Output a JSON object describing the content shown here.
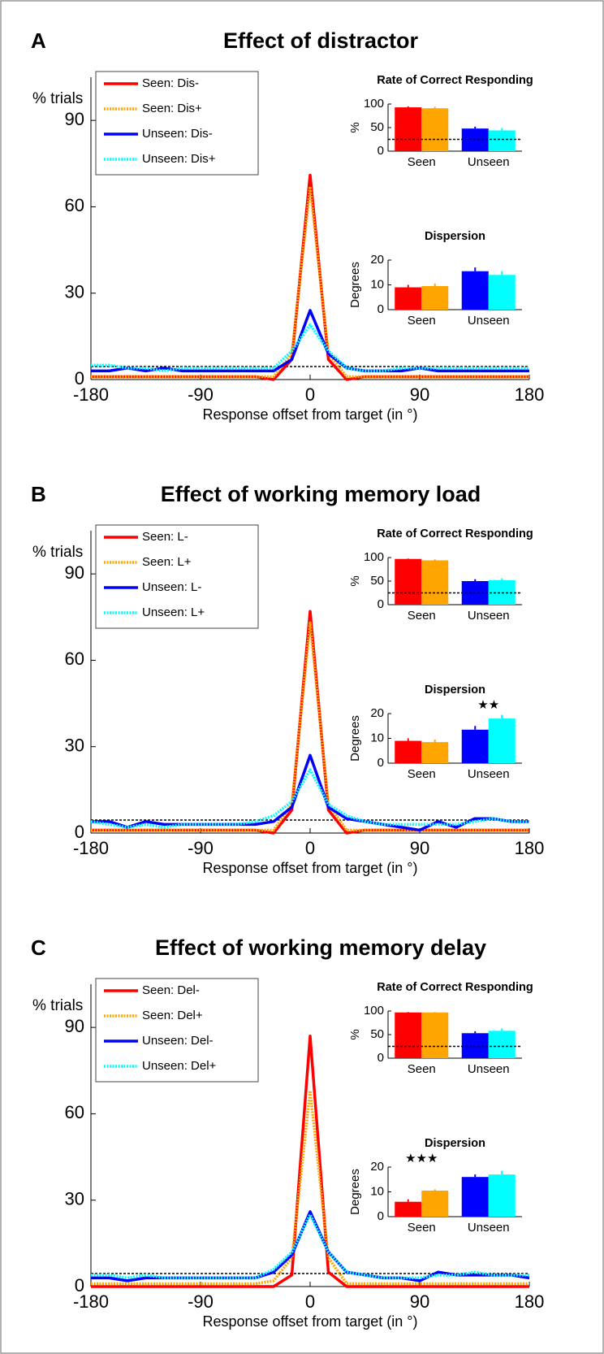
{
  "chart_data": [
    {
      "type": "line",
      "panel_label": "A",
      "title": "Effect of distractor",
      "y_label": "% trials",
      "x_label": "Response offset from target (in °)",
      "xlim": [
        -180,
        180
      ],
      "xticks": [
        -180,
        -90,
        0,
        90,
        180
      ],
      "ylim": [
        0,
        105
      ],
      "yticks": [
        0,
        30,
        60,
        90
      ],
      "x": [
        -180,
        -165,
        -150,
        -135,
        -120,
        -105,
        -90,
        -75,
        -60,
        -45,
        -30,
        -15,
        0,
        15,
        30,
        45,
        60,
        75,
        90,
        105,
        120,
        135,
        150,
        165,
        180
      ],
      "reference_line": 4.5,
      "legend": "upper left",
      "series": [
        {
          "name": "Seen: Dis-",
          "color": "#ff0000",
          "dash": "solid",
          "values": [
            1,
            1,
            1,
            1,
            1,
            1,
            1,
            1,
            1,
            1,
            0,
            7,
            71,
            7,
            0,
            1,
            1,
            1,
            1,
            1,
            1,
            1,
            1,
            1,
            1
          ]
        },
        {
          "name": "Seen: Dis+",
          "color": "#ffa500",
          "dash": "dotted",
          "values": [
            1,
            1,
            1,
            1,
            1,
            1,
            1,
            1,
            1,
            1,
            1,
            9,
            67,
            9,
            1,
            1,
            1,
            1,
            1,
            1,
            1,
            1,
            1,
            1,
            1
          ]
        },
        {
          "name": "Unseen: Dis-",
          "color": "#0000ff",
          "dash": "solid",
          "values": [
            3,
            3,
            4,
            3,
            4,
            3,
            3,
            3,
            3,
            3,
            3,
            7,
            24,
            9,
            4,
            3,
            3,
            3,
            4,
            3,
            3,
            3,
            3,
            3,
            3
          ]
        },
        {
          "name": "Unseen: Dis+",
          "color": "#00ffff",
          "dash": "dotted",
          "values": [
            5,
            5,
            4,
            4,
            3,
            4,
            4,
            4,
            4,
            4,
            4,
            10,
            19,
            10,
            4,
            3,
            3,
            4,
            4,
            4,
            4,
            4,
            4,
            4,
            4
          ]
        }
      ],
      "insets": [
        {
          "type": "bar",
          "title": "Rate of Correct Responding",
          "y_label": "%",
          "ylim": [
            0,
            100
          ],
          "yticks": [
            0,
            50,
            100
          ],
          "categories": [
            "Seen",
            "Unseen"
          ],
          "reference_line": 25,
          "series": [
            {
              "colors": [
                "#ff0000",
                "#0000ff"
              ],
              "values": [
                93,
                48
              ],
              "errors": [
                2,
                4
              ]
            },
            {
              "colors": [
                "#ffa500",
                "#00ffff"
              ],
              "values": [
                91,
                44
              ],
              "errors": [
                3,
                5
              ]
            }
          ]
        },
        {
          "type": "bar",
          "title": "Dispersion",
          "y_label": "Degrees",
          "ylim": [
            0,
            20
          ],
          "yticks": [
            0,
            10,
            20
          ],
          "categories": [
            "Seen",
            "Unseen"
          ],
          "series": [
            {
              "colors": [
                "#ff0000",
                "#0000ff"
              ],
              "values": [
                9,
                15.5
              ],
              "errors": [
                1,
                1.5
              ]
            },
            {
              "colors": [
                "#ffa500",
                "#00ffff"
              ],
              "values": [
                9.5,
                14
              ],
              "errors": [
                1,
                1.5
              ]
            }
          ]
        }
      ]
    },
    {
      "type": "line",
      "panel_label": "B",
      "title": "Effect of working memory load",
      "y_label": "% trials",
      "x_label": "Response offset from target (in °)",
      "xlim": [
        -180,
        180
      ],
      "xticks": [
        -180,
        -90,
        0,
        90,
        180
      ],
      "ylim": [
        0,
        105
      ],
      "yticks": [
        0,
        30,
        60,
        90
      ],
      "x": [
        -180,
        -165,
        -150,
        -135,
        -120,
        -105,
        -90,
        -75,
        -60,
        -45,
        -30,
        -15,
        0,
        15,
        30,
        45,
        60,
        75,
        90,
        105,
        120,
        135,
        150,
        165,
        180
      ],
      "reference_line": 4.5,
      "legend": "upper left",
      "series": [
        {
          "name": "Seen: L-",
          "color": "#ff0000",
          "dash": "solid",
          "values": [
            1,
            1,
            1,
            1,
            1,
            1,
            1,
            1,
            1,
            1,
            0,
            8,
            77,
            8,
            0,
            1,
            1,
            1,
            1,
            1,
            1,
            1,
            1,
            1,
            1
          ]
        },
        {
          "name": "Seen: L+",
          "color": "#ffa500",
          "dash": "dotted",
          "values": [
            1,
            1,
            1,
            1,
            1,
            1,
            1,
            1,
            1,
            1,
            1,
            10,
            73,
            10,
            1,
            1,
            1,
            1,
            1,
            1,
            1,
            1,
            1,
            1,
            1
          ]
        },
        {
          "name": "Unseen: L-",
          "color": "#0000ff",
          "dash": "solid",
          "values": [
            4,
            4,
            2,
            4,
            3,
            3,
            3,
            3,
            3,
            3,
            4,
            9,
            27,
            9,
            5,
            4,
            3,
            2,
            1,
            4,
            2,
            5,
            5,
            4,
            4
          ]
        },
        {
          "name": "Unseen: L+",
          "color": "#00ffff",
          "dash": "dotted",
          "values": [
            4,
            3,
            2,
            3,
            2,
            3,
            3,
            3,
            3,
            4,
            6,
            11,
            22,
            10,
            6,
            4,
            3,
            3,
            3,
            3,
            3,
            4,
            5,
            4,
            4
          ]
        }
      ],
      "insets": [
        {
          "type": "bar",
          "title": "Rate of Correct Responding",
          "y_label": "%",
          "ylim": [
            0,
            100
          ],
          "yticks": [
            0,
            50,
            100
          ],
          "categories": [
            "Seen",
            "Unseen"
          ],
          "reference_line": 25,
          "series": [
            {
              "colors": [
                "#ff0000",
                "#0000ff"
              ],
              "values": [
                97,
                50
              ],
              "errors": [
                1,
                4
              ]
            },
            {
              "colors": [
                "#ffa500",
                "#00ffff"
              ],
              "values": [
                94,
                52
              ],
              "errors": [
                2,
                4
              ]
            }
          ]
        },
        {
          "type": "bar",
          "title": "Dispersion",
          "y_label": "Degrees",
          "ylim": [
            0,
            20
          ],
          "yticks": [
            0,
            10,
            20
          ],
          "categories": [
            "Seen",
            "Unseen"
          ],
          "annotation": {
            "text": "★★",
            "category": "Unseen"
          },
          "series": [
            {
              "colors": [
                "#ff0000",
                "#0000ff"
              ],
              "values": [
                9,
                13.5
              ],
              "errors": [
                1,
                1.5
              ]
            },
            {
              "colors": [
                "#ffa500",
                "#00ffff"
              ],
              "values": [
                8.5,
                18
              ],
              "errors": [
                1,
                1.5
              ]
            }
          ]
        }
      ]
    },
    {
      "type": "line",
      "panel_label": "C",
      "title": "Effect of working memory delay",
      "y_label": "% trials",
      "x_label": "Response offset from target (in °)",
      "xlim": [
        -180,
        180
      ],
      "xticks": [
        -180,
        -90,
        0,
        90,
        180
      ],
      "ylim": [
        0,
        105
      ],
      "yticks": [
        0,
        30,
        60,
        90
      ],
      "x": [
        -180,
        -165,
        -150,
        -135,
        -120,
        -105,
        -90,
        -75,
        -60,
        -45,
        -30,
        -15,
        0,
        15,
        30,
        45,
        60,
        75,
        90,
        105,
        120,
        135,
        150,
        165,
        180
      ],
      "reference_line": 4.5,
      "legend": "upper left",
      "series": [
        {
          "name": "Seen: Del-",
          "color": "#ff0000",
          "dash": "solid",
          "values": [
            0,
            0,
            0,
            0,
            0,
            0,
            0,
            0,
            0,
            0,
            0,
            4,
            87,
            5,
            0,
            0,
            0,
            0,
            0,
            0,
            0,
            0,
            0,
            0,
            0
          ]
        },
        {
          "name": "Seen: Del+",
          "color": "#ffa500",
          "dash": "dotted",
          "values": [
            1,
            1,
            1,
            1,
            1,
            1,
            1,
            1,
            1,
            1,
            2,
            10,
            68,
            10,
            1,
            1,
            1,
            1,
            1,
            1,
            1,
            1,
            1,
            1,
            1
          ]
        },
        {
          "name": "Unseen: Del-",
          "color": "#0000ff",
          "dash": "solid",
          "values": [
            3,
            3,
            2,
            3,
            3,
            3,
            3,
            3,
            3,
            3,
            5,
            11,
            26,
            12,
            5,
            4,
            3,
            3,
            2,
            5,
            4,
            4,
            4,
            4,
            3
          ]
        },
        {
          "name": "Unseen: Del+",
          "color": "#00ffff",
          "dash": "dotted",
          "values": [
            4,
            4,
            3,
            4,
            3,
            3,
            3,
            3,
            3,
            3,
            6,
            12,
            25,
            12,
            5,
            4,
            3,
            3,
            3,
            4,
            4,
            5,
            4,
            4,
            4
          ]
        }
      ],
      "insets": [
        {
          "type": "bar",
          "title": "Rate of Correct Responding",
          "y_label": "%",
          "ylim": [
            0,
            100
          ],
          "yticks": [
            0,
            50,
            100
          ],
          "categories": [
            "Seen",
            "Unseen"
          ],
          "reference_line": 25,
          "series": [
            {
              "colors": [
                "#ff0000",
                "#0000ff"
              ],
              "values": [
                97,
                53
              ],
              "errors": [
                1,
                4
              ]
            },
            {
              "colors": [
                "#ffa500",
                "#00ffff"
              ],
              "values": [
                97,
                58
              ],
              "errors": [
                1,
                5
              ]
            }
          ]
        },
        {
          "type": "bar",
          "title": "Dispersion",
          "y_label": "Degrees",
          "ylim": [
            0,
            20
          ],
          "yticks": [
            0,
            10,
            20
          ],
          "categories": [
            "Seen",
            "Unseen"
          ],
          "annotation": {
            "text": "★★★",
            "category": "Seen"
          },
          "series": [
            {
              "colors": [
                "#ff0000",
                "#0000ff"
              ],
              "values": [
                6,
                16
              ],
              "errors": [
                1,
                1
              ]
            },
            {
              "colors": [
                "#ffa500",
                "#00ffff"
              ],
              "values": [
                10.5,
                17
              ],
              "errors": [
                0.5,
                1.5
              ]
            }
          ]
        }
      ]
    }
  ]
}
